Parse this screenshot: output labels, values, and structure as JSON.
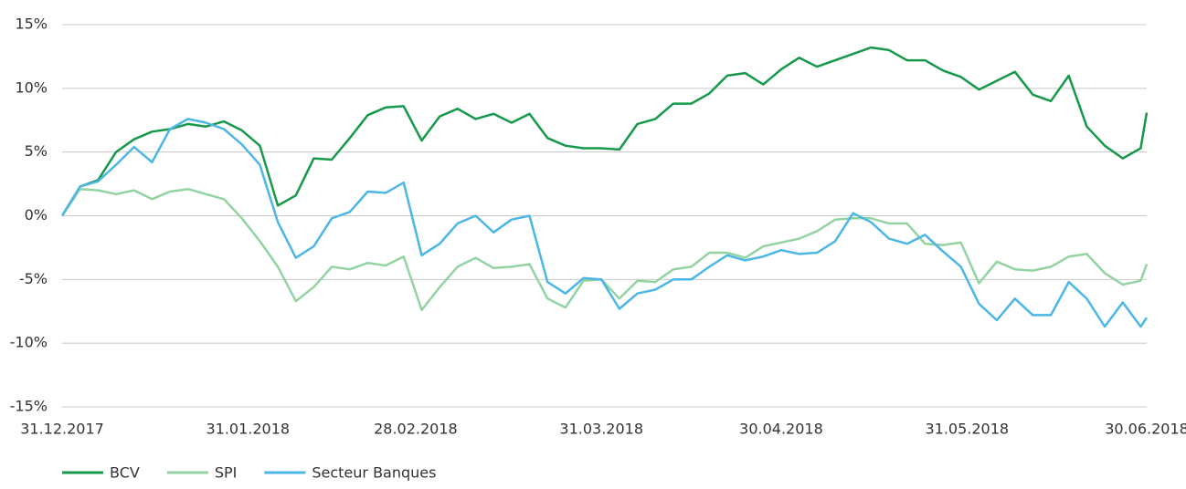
{
  "chart_data": {
    "type": "line",
    "x": [
      "31.12.2017",
      "03.01.2018",
      "06.01.2018",
      "09.01.2018",
      "12.01.2018",
      "15.01.2018",
      "18.01.2018",
      "21.01.2018",
      "24.01.2018",
      "27.01.2018",
      "30.01.2018",
      "02.02.2018",
      "05.02.2018",
      "08.02.2018",
      "11.02.2018",
      "14.02.2018",
      "17.02.2018",
      "20.02.2018",
      "23.02.2018",
      "26.02.2018",
      "01.03.2018",
      "04.03.2018",
      "07.03.2018",
      "10.03.2018",
      "13.03.2018",
      "16.03.2018",
      "19.03.2018",
      "22.03.2018",
      "25.03.2018",
      "28.03.2018",
      "31.03.2018",
      "03.04.2018",
      "06.04.2018",
      "09.04.2018",
      "12.04.2018",
      "15.04.2018",
      "18.04.2018",
      "21.04.2018",
      "24.04.2018",
      "27.04.2018",
      "30.04.2018",
      "03.05.2018",
      "06.05.2018",
      "09.05.2018",
      "12.05.2018",
      "15.05.2018",
      "18.05.2018",
      "21.05.2018",
      "24.05.2018",
      "27.05.2018",
      "30.05.2018",
      "02.06.2018",
      "05.06.2018",
      "08.06.2018",
      "11.06.2018",
      "14.06.2018",
      "17.06.2018",
      "20.06.2018",
      "23.06.2018",
      "26.06.2018",
      "29.06.2018",
      "30.06.2018"
    ],
    "series": [
      {
        "name": "BCV",
        "color": "#16994a",
        "values": [
          0,
          2.3,
          2.8,
          5.0,
          6.0,
          6.6,
          6.8,
          7.2,
          7.0,
          7.4,
          6.7,
          5.5,
          0.8,
          1.6,
          4.5,
          4.4,
          6.1,
          7.9,
          8.5,
          8.6,
          5.9,
          7.8,
          8.4,
          7.6,
          8.0,
          7.3,
          8.0,
          6.1,
          5.5,
          5.3,
          5.3,
          5.2,
          7.2,
          7.6,
          8.8,
          8.8,
          9.6,
          11.0,
          11.2,
          10.3,
          11.5,
          12.4,
          11.7,
          12.2,
          12.7,
          13.2,
          13.0,
          12.2,
          12.2,
          11.4,
          10.9,
          9.9,
          10.6,
          11.3,
          9.5,
          9.0,
          11.0,
          7.0,
          5.5,
          4.5,
          5.3,
          8.1
        ]
      },
      {
        "name": "SPI",
        "color": "#93d3a2",
        "values": [
          0,
          2.1,
          2.0,
          1.7,
          2.0,
          1.3,
          1.9,
          2.1,
          1.7,
          1.3,
          -0.2,
          -2.0,
          -4.0,
          -6.7,
          -5.6,
          -4.0,
          -4.2,
          -3.7,
          -3.9,
          -3.2,
          -7.4,
          -5.6,
          -4.0,
          -3.3,
          -4.1,
          -4.0,
          -3.8,
          -6.5,
          -7.2,
          -5.1,
          -5.0,
          -6.5,
          -5.1,
          -5.2,
          -4.2,
          -4.0,
          -2.9,
          -2.9,
          -3.3,
          -2.4,
          -2.1,
          -1.8,
          -1.2,
          -0.3,
          -0.2,
          -0.2,
          -0.6,
          -0.6,
          -2.2,
          -2.3,
          -2.1,
          -5.3,
          -3.6,
          -4.2,
          -4.3,
          -4.0,
          -3.2,
          -3.0,
          -4.5,
          -5.4,
          -5.1,
          -3.8
        ]
      },
      {
        "name": "Secteur Banques",
        "color": "#4cb6e4",
        "values": [
          0,
          2.3,
          2.7,
          4.0,
          5.4,
          4.2,
          6.8,
          7.6,
          7.3,
          6.8,
          5.6,
          4.0,
          -0.5,
          -3.3,
          -2.4,
          -0.2,
          0.3,
          1.9,
          1.8,
          2.6,
          -3.1,
          -2.2,
          -0.6,
          0.0,
          -1.3,
          -0.3,
          0.0,
          -5.2,
          -6.1,
          -4.9,
          -5.0,
          -7.3,
          -6.1,
          -5.8,
          -5.0,
          -5.0,
          -4.0,
          -3.1,
          -3.5,
          -3.2,
          -2.7,
          -3.0,
          -2.9,
          -2.0,
          0.2,
          -0.5,
          -1.8,
          -2.2,
          -1.5,
          -2.8,
          -4.0,
          -6.9,
          -8.2,
          -6.5,
          -7.8,
          -7.8,
          -5.2,
          -6.5,
          -8.7,
          -6.8,
          -8.7,
          -8.0
        ]
      }
    ],
    "xlim": [
      "31.12.2017",
      "30.06.2018"
    ],
    "xticks": [
      "31.12.2017",
      "31.01.2018",
      "28.02.2018",
      "31.03.2018",
      "30.04.2018",
      "31.05.2018",
      "30.06.2018"
    ],
    "ylim": [
      -15,
      15
    ],
    "yticks": [
      {
        "value": -15,
        "label": "-15%"
      },
      {
        "value": -10,
        "label": "-10%"
      },
      {
        "value": -5,
        "label": "-5%"
      },
      {
        "value": 0,
        "label": "0%"
      },
      {
        "value": 5,
        "label": "5%"
      },
      {
        "value": 10,
        "label": "10%"
      },
      {
        "value": 15,
        "label": "15%"
      }
    ],
    "grid": true,
    "legend": "bottom"
  }
}
